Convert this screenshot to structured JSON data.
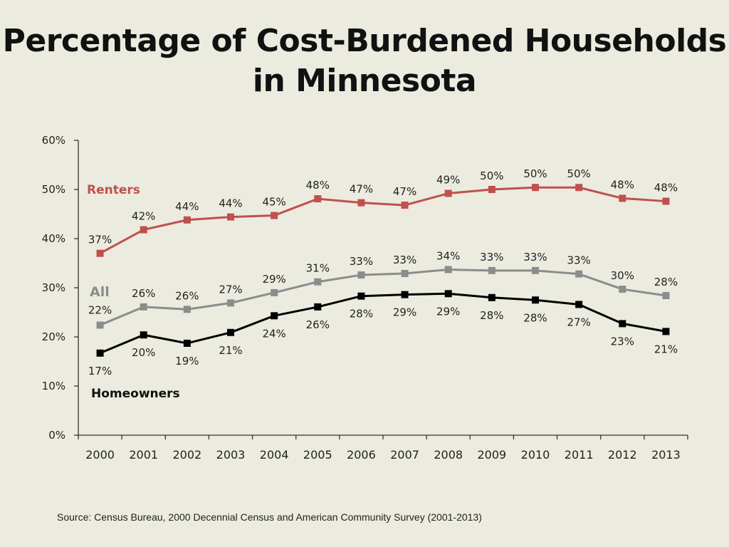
{
  "title": {
    "line1": "Percentage of Cost-Burdened Households",
    "line2": "in Minnesota"
  },
  "source": "Source:  Census Bureau, 2000 Decennial Census and American Community Survey (2001-2013)",
  "colors": {
    "renters": "#c0504d",
    "all": "#8c8c8c",
    "homeowners": "#000000",
    "axis": "#333333",
    "text": "#222222"
  },
  "chart_data": {
    "type": "line",
    "title": "Percentage of Cost-Burdened Households in Minnesota",
    "xlabel": "",
    "ylabel": "",
    "ylim": [
      0,
      60
    ],
    "yticks": [
      0,
      10,
      20,
      30,
      40,
      50,
      60
    ],
    "ytick_labels": [
      "0%",
      "10%",
      "20%",
      "30%",
      "40%",
      "50%",
      "60%"
    ],
    "grid": false,
    "categories": [
      "2000",
      "2001",
      "2002",
      "2003",
      "2004",
      "2005",
      "2006",
      "2007",
      "2008",
      "2009",
      "2010",
      "2011",
      "2012",
      "2013"
    ],
    "series": [
      {
        "key": "renters",
        "name": "Renters",
        "values": [
          37,
          41.8,
          43.8,
          44.4,
          44.7,
          48.1,
          47.3,
          46.8,
          49.2,
          50.0,
          50.4,
          50.4,
          48.2,
          47.6
        ],
        "labels": [
          "37%",
          "42%",
          "44%",
          "44%",
          "45%",
          "48%",
          "47%",
          "47%",
          "49%",
          "50%",
          "50%",
          "50%",
          "48%",
          "48%"
        ]
      },
      {
        "key": "all",
        "name": "All",
        "values": [
          22.4,
          26.1,
          25.6,
          26.9,
          29.0,
          31.2,
          32.6,
          32.9,
          33.7,
          33.5,
          33.5,
          32.8,
          29.7,
          28.4
        ],
        "labels": [
          "22%",
          "26%",
          "26%",
          "27%",
          "29%",
          "31%",
          "33%",
          "33%",
          "34%",
          "33%",
          "33%",
          "33%",
          "30%",
          "28%"
        ]
      },
      {
        "key": "homeowners",
        "name": "Homeowners",
        "values": [
          16.7,
          20.4,
          18.7,
          20.9,
          24.3,
          26.1,
          28.3,
          28.6,
          28.8,
          28.0,
          27.5,
          26.6,
          22.7,
          21.1
        ],
        "labels": [
          "17%",
          "20%",
          "19%",
          "21%",
          "24%",
          "26%",
          "28%",
          "29%",
          "29%",
          "28%",
          "28%",
          "27%",
          "23%",
          "21%"
        ]
      }
    ]
  }
}
